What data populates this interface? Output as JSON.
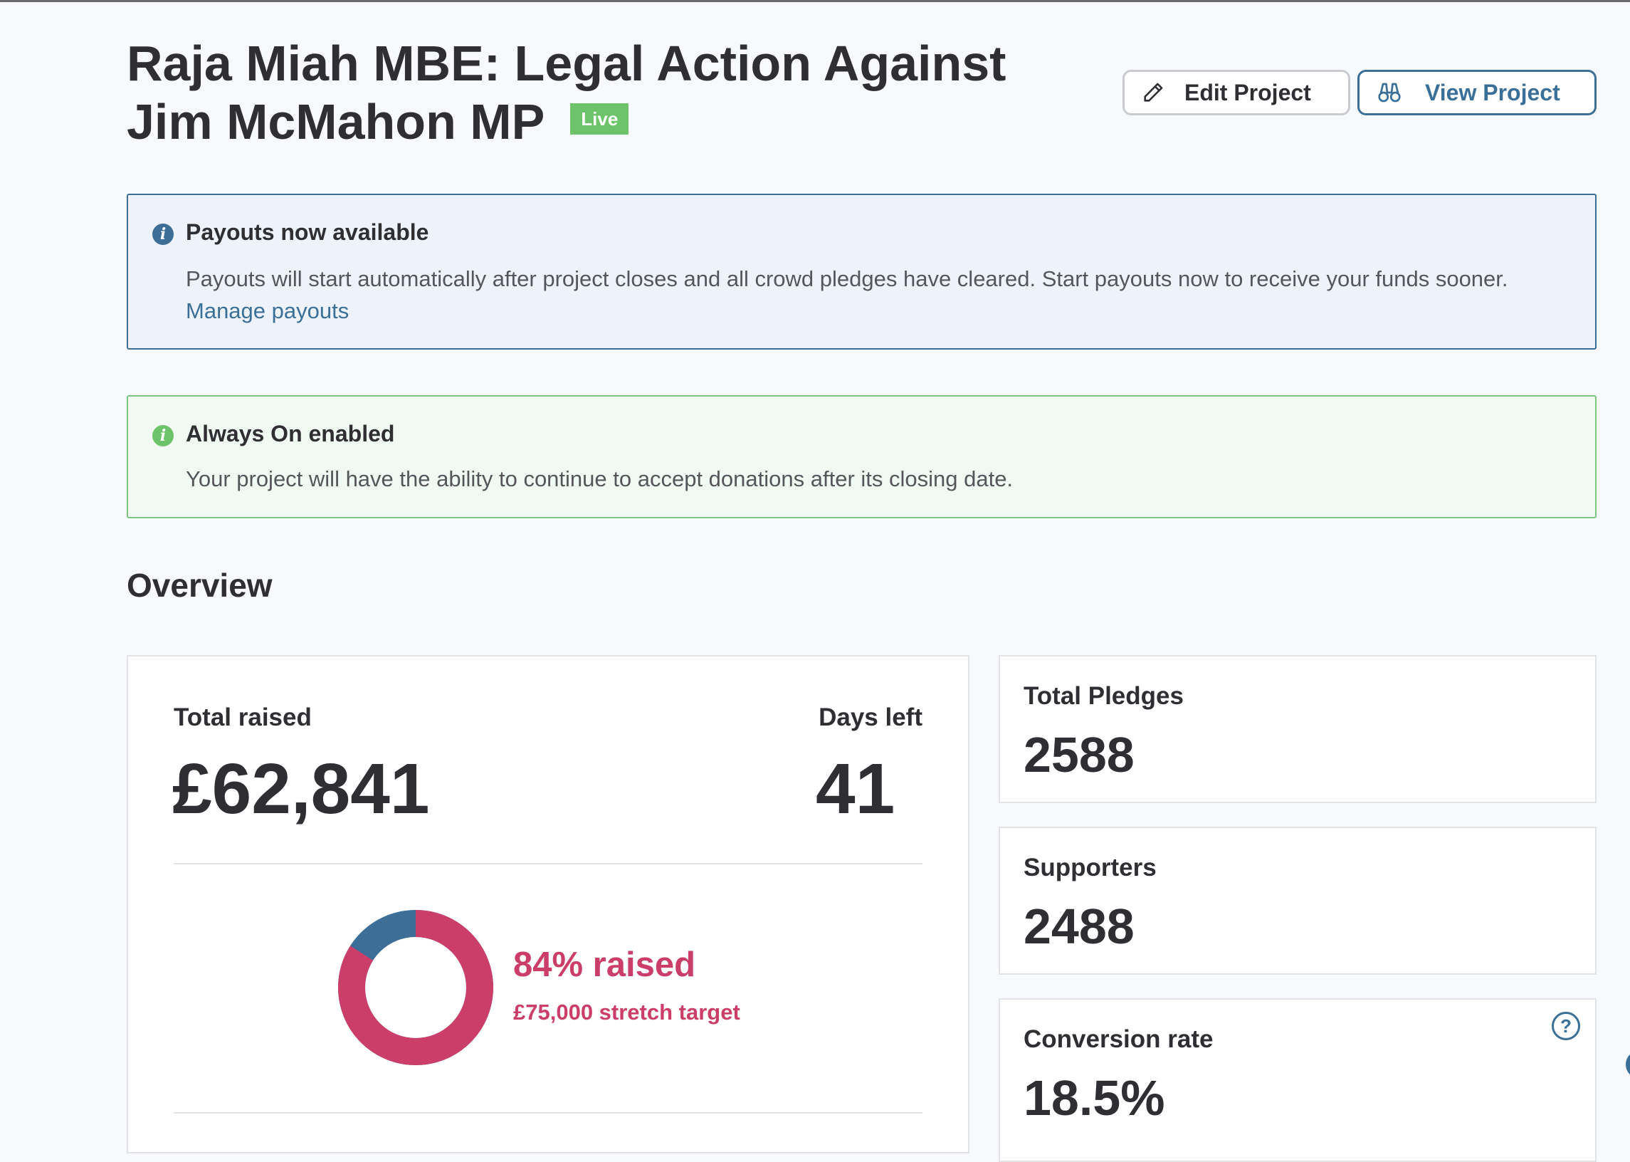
{
  "header": {
    "title": "Raja Miah MBE: Legal Action Against Jim McMahon MP",
    "status_badge": "Live",
    "edit_button": "Edit Project",
    "view_button": "View Project"
  },
  "alerts": {
    "payouts": {
      "title": "Payouts now available",
      "body": "Payouts will start automatically after project closes and all crowd pledges have cleared. Start payouts now to receive your funds sooner.",
      "link": "Manage payouts"
    },
    "always_on": {
      "title": "Always On enabled",
      "body": "Your project will have the ability to continue to accept donations after its closing date."
    }
  },
  "overview": {
    "title": "Overview",
    "total_raised_label": "Total raised",
    "total_raised_value": "£62,841",
    "days_left_label": "Days left",
    "days_left_value": "41",
    "progress_fraction": 0.84,
    "progress_label": "84% raised",
    "stretch_target": "£75,000 stretch target",
    "colors": {
      "raised": "#cc3e6a",
      "remaining": "#3d6e97"
    },
    "stats": {
      "total_pledges": {
        "label": "Total Pledges",
        "value": "2588"
      },
      "supporters": {
        "label": "Supporters",
        "value": "2488"
      },
      "conversion_rate": {
        "label": "Conversion rate",
        "value": "18.5%"
      }
    },
    "help_icon": "?"
  },
  "icons": {
    "edit": "pencil-icon",
    "view": "binoculars-icon",
    "info": "info-icon",
    "help": "question-mark-icon"
  }
}
